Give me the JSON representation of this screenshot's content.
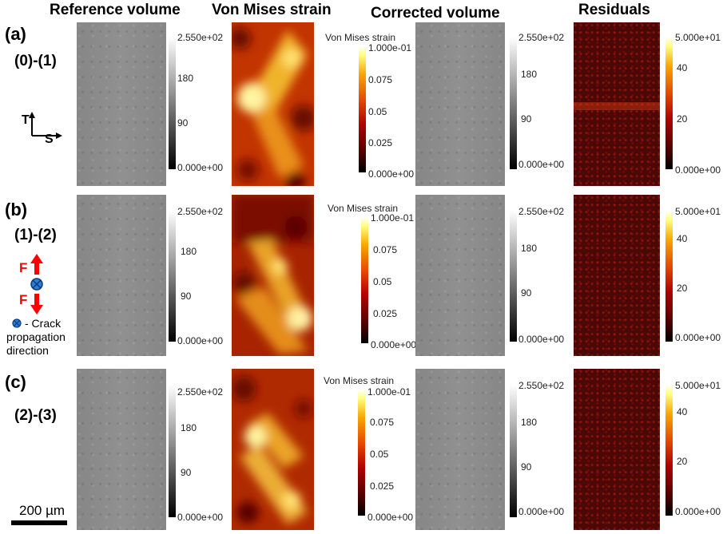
{
  "headers": {
    "reference": "Reference volume",
    "strain": "Von Mises strain",
    "corrected": "Corrected volume",
    "residuals": "Residuals"
  },
  "rows": [
    {
      "letter": "(a)",
      "pair": "(0)-(1)"
    },
    {
      "letter": "(b)",
      "pair": "(1)-(2)"
    },
    {
      "letter": "(c)",
      "pair": "(2)-(3)"
    }
  ],
  "colorbars": {
    "gray": {
      "max": "2.550e+02",
      "mid1": "180",
      "mid2": "90",
      "min": "0.000e+00"
    },
    "strain": {
      "title": "Von Mises strain",
      "max": "1.000e-01",
      "t1": "0.075",
      "t2": "0.05",
      "t3": "0.025",
      "min": "0.000e+00"
    },
    "resid": {
      "max": "5.000e+01",
      "t1": "40",
      "t2": "20",
      "min": "0.000e+00"
    }
  },
  "axes_legend": {
    "t": "T",
    "s": "S"
  },
  "force_legend": {
    "f_top": "F",
    "f_bottom": "F",
    "crack_label": "- Crack",
    "crack_line2": "propagation",
    "crack_line3": "direction"
  },
  "scale_bar": {
    "label": "200 µm"
  },
  "colors": {
    "force_arrow": "#ff0000",
    "crack_symbol": "#2a7fd4"
  }
}
